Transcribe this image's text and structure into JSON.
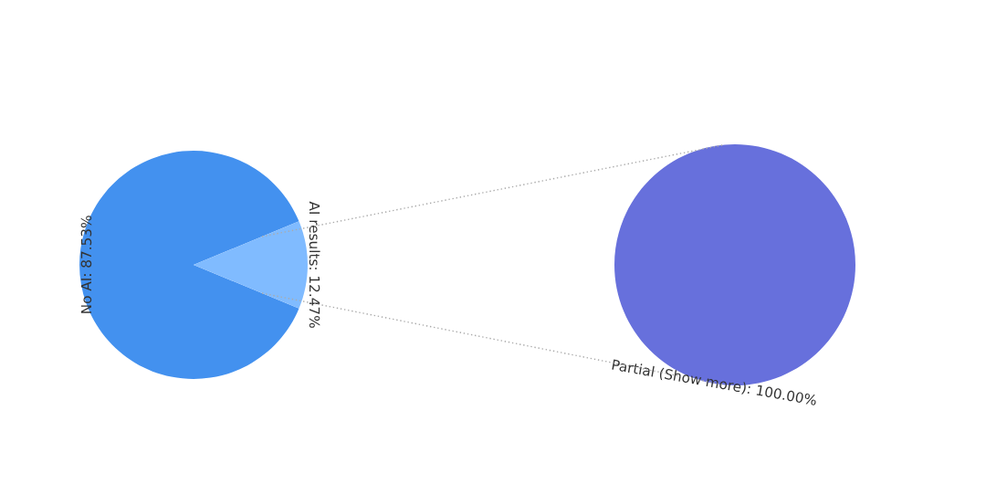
{
  "chart_data": [
    {
      "type": "pie",
      "categories": [
        "No AI",
        "AI results"
      ],
      "values": [
        87.53,
        12.47
      ],
      "colors": [
        "#4391ef",
        "#80bbff"
      ],
      "value_labels": [
        "87.53%",
        "12.47%"
      ]
    },
    {
      "type": "pie",
      "categories": [
        "Partial (Show more)"
      ],
      "values": [
        100.0
      ],
      "colors": [
        "#6770dc"
      ],
      "value_labels": [
        "100.00%"
      ]
    }
  ]
}
